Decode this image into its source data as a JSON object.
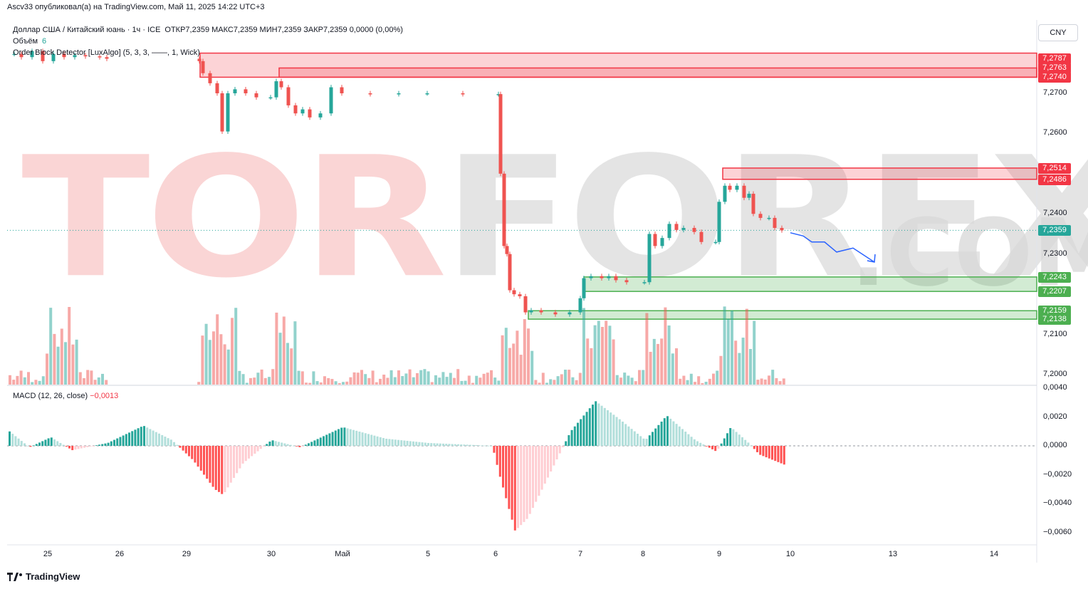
{
  "header": {
    "published": "Ascv33 опубликовал(а) на TradingView.com, Май 11, 2025 14:22 UTC+3"
  },
  "legend": {
    "symbol": "Доллар США / Китайский юань · 1ч · ICE",
    "ohlc": "ОТКР7,2359  МАКС7,2359  МИН7,2359  ЗАКР7,2359  0,0000 (0,00%)",
    "volume_label": "Объём",
    "volume_value": "6",
    "indicator": "Order Block Detector [LuxAlgo] (5, 3, 3, ——, 1, Wick)"
  },
  "currency_button": "CNY",
  "watermark": {
    "part1": "TOR",
    "part2": "FOREX",
    "part3": ".COM"
  },
  "macd": {
    "label": "MACD (12, 26, close)",
    "value": "−0,0013"
  },
  "branding": "TradingView",
  "price_axis": [
    "7,2700",
    "7,2600",
    "7,2400",
    "7,2300",
    "7,2100",
    "7,2000"
  ],
  "macd_axis": [
    "0,0040",
    "0,0020",
    "0,0000",
    "−0,0020",
    "−0,0040",
    "−0,0060"
  ],
  "price_tags": [
    {
      "text": "7,2787",
      "color": "#f23645",
      "price": 7.2787
    },
    {
      "text": "7,2763",
      "color": "#f23645",
      "price": 7.2763
    },
    {
      "text": "7,2740",
      "color": "#f23645",
      "price": 7.274
    },
    {
      "text": "7,2514",
      "color": "#f23645",
      "price": 7.2514
    },
    {
      "text": "7,2486",
      "color": "#f23645",
      "price": 7.2486
    },
    {
      "text": "7,2359",
      "color": "#26a69a",
      "price": 7.2359
    },
    {
      "text": "7,2243",
      "color": "#4caf50",
      "price": 7.2243
    },
    {
      "text": "7,2207",
      "color": "#4caf50",
      "price": 7.2207
    },
    {
      "text": "7,2159",
      "color": "#4caf50",
      "price": 7.2159
    },
    {
      "text": "7,2138",
      "color": "#4caf50",
      "price": 7.2138
    }
  ],
  "time_axis": [
    "25",
    "26",
    "29",
    "30",
    "Май",
    "5",
    "6",
    "7",
    "8",
    "9",
    "10",
    "13",
    "14"
  ],
  "chart_data": {
    "type": "candlestick",
    "symbol": "USDCNH",
    "interval": "1h",
    "last_price": 7.2359,
    "order_blocks": [
      {
        "kind": "bearish",
        "top": 7.28,
        "bottom": 7.274,
        "start": "29"
      },
      {
        "kind": "bearish",
        "top": 7.2763,
        "bottom": 7.274,
        "start": "30"
      },
      {
        "kind": "bearish",
        "top": 7.2514,
        "bottom": 7.2486,
        "start": "9"
      },
      {
        "kind": "bullish",
        "top": 7.2243,
        "bottom": 7.2207,
        "start": "7"
      },
      {
        "kind": "bullish",
        "top": 7.2159,
        "bottom": 7.2138,
        "start": "6"
      }
    ],
    "forecast_path": [
      7.2353,
      7.2345,
      7.233,
      7.233,
      7.2305,
      7.2315,
      7.228
    ],
    "colors": {
      "up": "#26a69a",
      "down": "#ef5350",
      "bear_block": "#f23645",
      "bull_block": "#4caf50",
      "forecast": "#2962ff"
    }
  }
}
